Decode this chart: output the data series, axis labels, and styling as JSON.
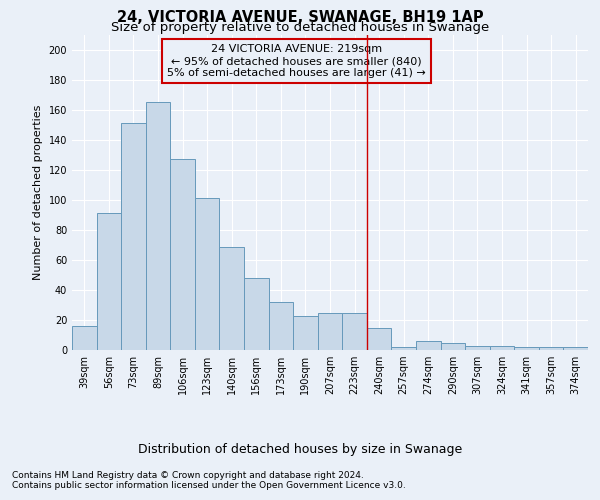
{
  "title": "24, VICTORIA AVENUE, SWANAGE, BH19 1AP",
  "subtitle": "Size of property relative to detached houses in Swanage",
  "xlabel": "Distribution of detached houses by size in Swanage",
  "ylabel": "Number of detached properties",
  "categories": [
    "39sqm",
    "56sqm",
    "73sqm",
    "89sqm",
    "106sqm",
    "123sqm",
    "140sqm",
    "156sqm",
    "173sqm",
    "190sqm",
    "207sqm",
    "223sqm",
    "240sqm",
    "257sqm",
    "274sqm",
    "290sqm",
    "307sqm",
    "324sqm",
    "341sqm",
    "357sqm",
    "374sqm"
  ],
  "values": [
    16,
    91,
    151,
    165,
    127,
    101,
    69,
    48,
    32,
    23,
    25,
    25,
    15,
    2,
    6,
    5,
    3,
    3,
    2,
    2,
    2
  ],
  "bar_color": "#c8d8e8",
  "bar_edge_color": "#6699bb",
  "vline_index": 11,
  "vline_color": "#cc0000",
  "annotation_text": "24 VICTORIA AVENUE: 219sqm\n← 95% of detached houses are smaller (840)\n5% of semi-detached houses are larger (41) →",
  "annotation_box_color": "#cc0000",
  "ylim": [
    0,
    210
  ],
  "yticks": [
    0,
    20,
    40,
    60,
    80,
    100,
    120,
    140,
    160,
    180,
    200
  ],
  "background_color": "#eaf0f8",
  "grid_color": "#ffffff",
  "footer_line1": "Contains HM Land Registry data © Crown copyright and database right 2024.",
  "footer_line2": "Contains public sector information licensed under the Open Government Licence v3.0.",
  "title_fontsize": 10.5,
  "subtitle_fontsize": 9.5,
  "ylabel_fontsize": 8,
  "xlabel_fontsize": 9,
  "tick_fontsize": 7,
  "annotation_fontsize": 8,
  "footer_fontsize": 6.5
}
